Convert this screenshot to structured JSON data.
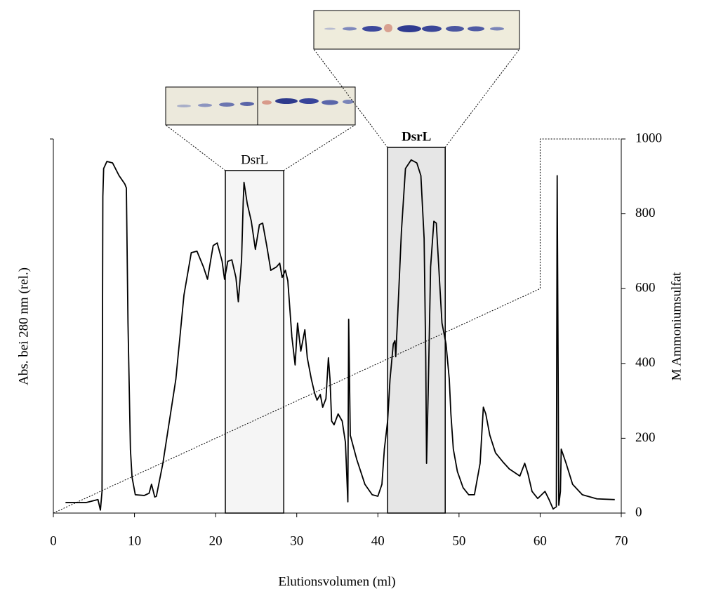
{
  "chart_data": {
    "type": "line",
    "x_label": "Elutionsvolumen (ml)",
    "y_label": "Abs. bei 280 nm (rel.)",
    "y2_label": "M Ammoniumsulfat",
    "xlim": [
      0,
      70
    ],
    "xticks": [
      0,
      10,
      20,
      30,
      40,
      50,
      60,
      70
    ],
    "ylim": [
      0,
      1000
    ],
    "y2lim": [
      0,
      1000
    ],
    "y2ticks": [
      0,
      200,
      400,
      600,
      800,
      1000
    ],
    "highlights": [
      {
        "label": "DsrL",
        "x": [
          21.2,
          28.4
        ],
        "bold": false,
        "color": "#f5f5f5"
      },
      {
        "label": "DsrL",
        "x": [
          41.2,
          48.3
        ],
        "bold": true,
        "color": "#e6e6e6"
      }
    ],
    "series": [
      {
        "color": "#000000",
        "dashed": false,
        "x": [
          1.5,
          4.0,
          5.5,
          5.8,
          6.0,
          6.1,
          6.2,
          6.6,
          7.3,
          8.1,
          8.8,
          9.0,
          9.2,
          9.5,
          9.7,
          10.1,
          11.2,
          11.8,
          12.1,
          12.5,
          12.7,
          13.5,
          15.1,
          16.1,
          17.0,
          17.7,
          18.5,
          19.0,
          19.4,
          19.7,
          20.2,
          20.8,
          21.1,
          21.5,
          22.0,
          22.5,
          22.8,
          23.2,
          23.4,
          23.5,
          23.9,
          24.4,
          24.9,
          25.4,
          25.8,
          26.3,
          26.8,
          27.5,
          27.9,
          28.2,
          28.6,
          28.9,
          29.4,
          29.8,
          30.1,
          30.5,
          31.0,
          31.3,
          31.8,
          32.2,
          32.5,
          32.9,
          33.2,
          33.6,
          33.9,
          34.1,
          34.3,
          34.6,
          35.1,
          35.6,
          36.0,
          36.3,
          36.4,
          36.6,
          37.4,
          38.4,
          39.3,
          40.0,
          40.5,
          40.8,
          41.2,
          41.5,
          41.9,
          42.1,
          42.2,
          42.4,
          42.9,
          43.4,
          44.1,
          44.8,
          45.3,
          45.7,
          45.9,
          46.0,
          46.2,
          46.5,
          46.9,
          47.2,
          47.6,
          47.9,
          48.4,
          48.8,
          49.0,
          49.3,
          49.8,
          50.5,
          51.2,
          51.9,
          52.6,
          53.0,
          53.3,
          53.8,
          54.5,
          55.4,
          56.2,
          57.5,
          58.1,
          58.5,
          59.0,
          59.7,
          60.6,
          61.1,
          61.6,
          62.0,
          62.1,
          62.3,
          62.5,
          62.6,
          63.2,
          64.0,
          65.2,
          67.0,
          69.2
        ],
        "values": [
          28,
          28,
          36,
          8,
          58,
          846,
          921,
          940,
          936,
          902,
          880,
          869,
          508,
          170,
          96,
          49,
          47,
          53,
          77,
          43,
          45,
          133,
          358,
          583,
          696,
          700,
          658,
          625,
          677,
          715,
          722,
          673,
          625,
          673,
          677,
          630,
          565,
          677,
          831,
          884,
          827,
          780,
          705,
          771,
          775,
          715,
          649,
          658,
          668,
          630,
          649,
          621,
          471,
          396,
          508,
          433,
          490,
          415,
          358,
          321,
          302,
          317,
          283,
          306,
          415,
          358,
          246,
          236,
          265,
          246,
          189,
          30,
          518,
          208,
          143,
          77,
          49,
          45,
          77,
          171,
          246,
          358,
          452,
          461,
          418,
          508,
          752,
          921,
          944,
          936,
          902,
          734,
          415,
          133,
          321,
          658,
          780,
          775,
          621,
          508,
          452,
          358,
          265,
          171,
          111,
          68,
          49,
          49,
          133,
          283,
          265,
          208,
          161,
          137,
          118,
          99,
          133,
          105,
          58,
          39,
          58,
          36,
          11,
          17,
          902,
          21,
          58,
          171,
          133,
          77,
          49,
          38,
          36
        ]
      },
      {
        "color": "#000000",
        "dashed": true,
        "axis": "y2",
        "x": [
          0,
          60,
          60,
          70
        ],
        "values": [
          0,
          600,
          1000,
          1000
        ]
      }
    ]
  }
}
